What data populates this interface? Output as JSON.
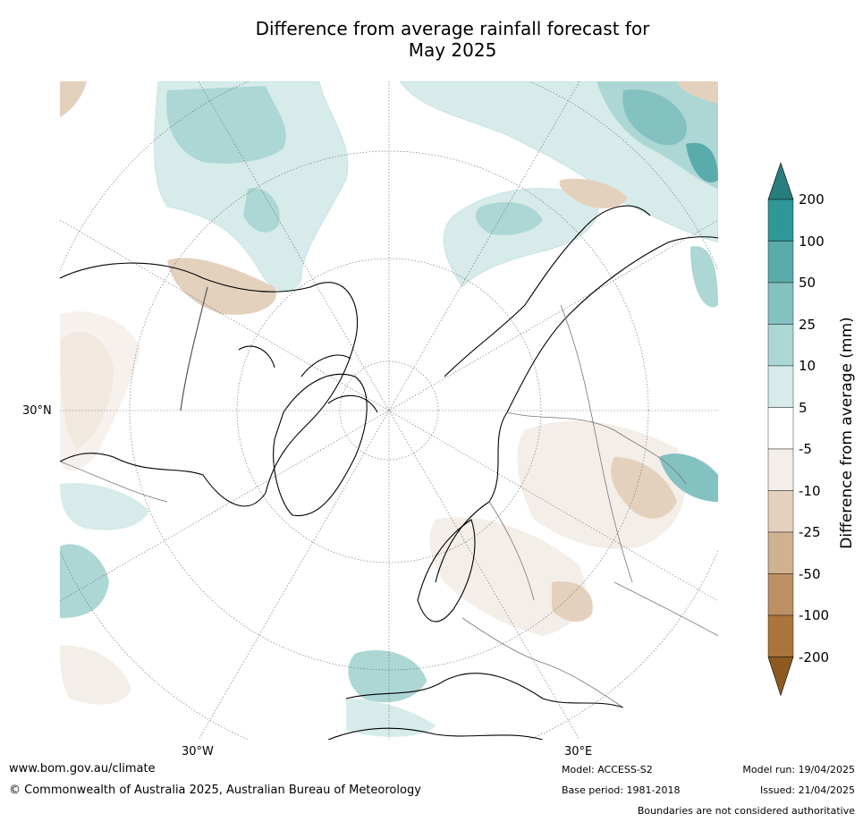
{
  "title_line1": "Difference from average rainfall forecast for",
  "title_line2": "May 2025",
  "map_labels": {
    "lat_30n": "30°N",
    "lon_30w": "30°W",
    "lon_30e": "30°E"
  },
  "colorbar": {
    "title": "Difference from average (mm)",
    "ticks": [
      "200",
      "100",
      "50",
      "25",
      "10",
      "5",
      "-5",
      "-10",
      "-25",
      "-50",
      "-100",
      "-200"
    ],
    "colors": [
      "#287e7e",
      "#2f9797",
      "#5aabab",
      "#84c2c1",
      "#acd7d5",
      "#d6ebea",
      "#ffffff",
      "#f4eee8",
      "#e4d1bd",
      "#d0b190",
      "#bd9064",
      "#ab743c",
      "#8f5a22"
    ]
  },
  "footer": {
    "url": "www.bom.gov.au/climate",
    "copyright": "© Commonwealth of Australia 2025, Australian Bureau of Meteorology",
    "model": "Model: ACCESS-S2",
    "base_period": "Base period: 1981-2018",
    "model_run": "Model run: 19/04/2025",
    "issued": "Issued: 21/04/2025",
    "disclaimer": "Boundaries are not considered authoritative"
  }
}
